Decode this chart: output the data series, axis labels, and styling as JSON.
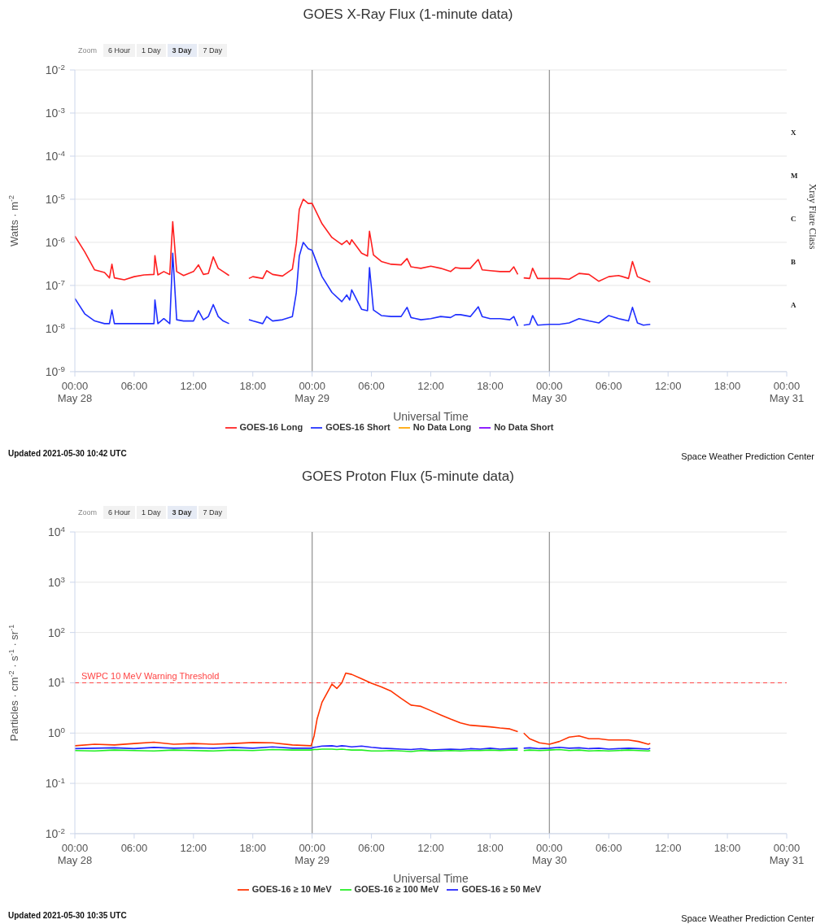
{
  "chart_data": [
    {
      "type": "line",
      "title": "GOES X-Ray Flux (1-minute data)",
      "xlabel": "Universal Time",
      "ylabel": "Watts · m$^{-2}$",
      "y2label": "Xray Flare Class",
      "x": [
        "2021-05-28T00:00",
        "2021-05-28T01:00",
        "2021-05-28T02:00",
        "2021-05-28T03:00",
        "2021-05-28T03:30",
        "2021-05-28T03:45",
        "2021-05-28T04:00",
        "2021-05-28T05:00",
        "2021-05-28T06:00",
        "2021-05-28T07:00",
        "2021-05-28T08:00",
        "2021-05-28T08:06",
        "2021-05-28T08:24",
        "2021-05-28T09:00",
        "2021-05-28T09:36",
        "2021-05-28T09:54",
        "2021-05-28T10:18",
        "2021-05-28T11:00",
        "2021-05-28T12:00",
        "2021-05-28T12:30",
        "2021-05-28T13:00",
        "2021-05-28T13:30",
        "2021-05-28T14:00",
        "2021-05-28T14:30",
        "2021-05-28T15:00",
        "2021-05-28T15:36",
        "2021-05-28T16:36",
        "2021-05-28T17:36",
        "2021-05-28T18:00",
        "2021-05-28T19:00",
        "2021-05-28T19:24",
        "2021-05-28T20:00",
        "2021-05-28T21:00",
        "2021-05-28T22:00",
        "2021-05-28T22:24",
        "2021-05-28T22:42",
        "2021-05-28T23:06",
        "2021-05-28T23:36",
        "2021-05-29T00:00",
        "2021-05-29T01:00",
        "2021-05-29T02:00",
        "2021-05-29T03:00",
        "2021-05-29T03:30",
        "2021-05-29T03:48",
        "2021-05-29T04:00",
        "2021-05-29T05:00",
        "2021-05-29T05:36",
        "2021-05-29T05:48",
        "2021-05-29T06:12",
        "2021-05-29T07:00",
        "2021-05-29T08:00",
        "2021-05-29T09:00",
        "2021-05-29T09:36",
        "2021-05-29T10:00",
        "2021-05-29T11:00",
        "2021-05-29T12:00",
        "2021-05-29T13:00",
        "2021-05-29T14:00",
        "2021-05-29T14:30",
        "2021-05-29T15:00",
        "2021-05-29T16:00",
        "2021-05-29T16:48",
        "2021-05-29T17:12",
        "2021-05-29T18:00",
        "2021-05-29T19:00",
        "2021-05-29T20:00",
        "2021-05-29T20:24",
        "2021-05-29T20:48",
        "2021-05-29T21:06",
        "2021-05-29T21:24",
        "2021-05-29T22:00",
        "2021-05-29T22:18",
        "2021-05-29T22:48",
        "2021-05-30T00:00",
        "2021-05-30T01:00",
        "2021-05-30T02:00",
        "2021-05-30T03:00",
        "2021-05-30T04:00",
        "2021-05-30T05:00",
        "2021-05-30T06:00",
        "2021-05-30T07:00",
        "2021-05-30T08:00",
        "2021-05-30T08:24",
        "2021-05-30T08:54",
        "2021-05-30T09:30",
        "2021-05-30T10:12"
      ],
      "series": [
        {
          "name": "GOES-16 Long",
          "color": "#ff2020",
          "values": [
            1.4e-06,
            6e-07,
            2.3e-07,
            2e-07,
            1.5e-07,
            3.1e-07,
            1.5e-07,
            1.35e-07,
            1.6e-07,
            1.75e-07,
            1.8e-07,
            4.9e-07,
            1.75e-07,
            2.1e-07,
            1.8e-07,
            3e-06,
            2.1e-07,
            1.7e-07,
            2.1e-07,
            3e-07,
            1.8e-07,
            1.9e-07,
            4.6e-07,
            2.5e-07,
            2.1e-07,
            1.7e-07,
            null,
            1.45e-07,
            1.6e-07,
            1.45e-07,
            2.2e-07,
            1.8e-07,
            1.65e-07,
            2.4e-07,
            9.5e-07,
            5.8e-06,
            1e-05,
            8e-06,
            8e-06,
            2.7e-06,
            1.3e-06,
            8.9e-07,
            1.1e-06,
            8.9e-07,
            1.15e-06,
            5.6e-07,
            4.8e-07,
            1.8e-06,
            5.1e-07,
            3.6e-07,
            3.1e-07,
            3e-07,
            4.2e-07,
            2.7e-07,
            2.5e-07,
            2.8e-07,
            2.5e-07,
            2.1e-07,
            2.6e-07,
            2.5e-07,
            2.5e-07,
            4e-07,
            2.3e-07,
            2.2e-07,
            2.1e-07,
            2.1e-07,
            2.7e-07,
            1.8e-07,
            null,
            1.5e-07,
            1.45e-07,
            2.5e-07,
            1.45e-07,
            1.45e-07,
            1.45e-07,
            1.4e-07,
            1.9e-07,
            1.8e-07,
            1.25e-07,
            1.6e-07,
            1.7e-07,
            1.45e-07,
            3.6e-07,
            1.6e-07,
            1.4e-07,
            1.2e-07
          ]
        },
        {
          "name": "GOES-16 Short",
          "color": "#1f2fff",
          "values": [
            5e-08,
            2.2e-08,
            1.5e-08,
            1.3e-08,
            1.3e-08,
            2.7e-08,
            1.3e-08,
            1.3e-08,
            1.3e-08,
            1.3e-08,
            1.3e-08,
            4.6e-08,
            1.3e-08,
            1.7e-08,
            1.3e-08,
            5.6e-07,
            1.6e-08,
            1.5e-08,
            1.5e-08,
            2.6e-08,
            1.6e-08,
            1.9e-08,
            3.6e-08,
            1.9e-08,
            1.5e-08,
            1.3e-08,
            null,
            1.6e-08,
            1.5e-08,
            1.3e-08,
            1.9e-08,
            1.5e-08,
            1.6e-08,
            1.9e-08,
            6.8e-08,
            4.8e-07,
            1e-06,
            7.1e-07,
            6.5e-07,
            1.6e-07,
            6.9e-08,
            4.2e-08,
            6e-08,
            4.6e-08,
            7.9e-08,
            2.8e-08,
            2.6e-08,
            2.6e-07,
            2.7e-08,
            2e-08,
            1.9e-08,
            1.9e-08,
            3.1e-08,
            1.8e-08,
            1.6e-08,
            1.7e-08,
            1.9e-08,
            1.8e-08,
            2.1e-08,
            2.1e-08,
            1.9e-08,
            3.2e-08,
            1.9e-08,
            1.7e-08,
            1.7e-08,
            1.6e-08,
            1.9e-08,
            1.15e-08,
            null,
            1.2e-08,
            1.25e-08,
            2e-08,
            1.2e-08,
            1.25e-08,
            1.25e-08,
            1.35e-08,
            1.7e-08,
            1.5e-08,
            1.35e-08,
            2e-08,
            1.7e-08,
            1.5e-08,
            3.1e-08,
            1.35e-08,
            1.2e-08,
            1.25e-08
          ]
        },
        {
          "name": "No Data Long",
          "color": "#ffa500",
          "values": [
            null,
            null,
            null,
            null,
            null,
            null,
            null,
            null,
            null,
            null,
            null,
            null,
            null,
            null,
            null,
            null,
            null,
            null,
            null,
            null,
            null,
            null,
            null,
            null,
            null,
            null,
            null,
            null,
            null,
            null,
            null,
            null,
            null,
            null,
            null,
            null,
            null,
            null,
            null,
            null,
            null,
            null,
            null,
            null,
            null,
            null,
            null,
            null,
            null,
            null,
            null,
            null,
            null,
            null,
            null,
            null,
            null,
            null,
            null,
            null,
            null,
            null,
            null,
            null,
            null,
            null,
            null,
            null,
            null,
            null,
            null,
            null,
            null,
            null,
            null,
            null,
            null,
            null,
            null,
            null,
            null,
            null,
            null,
            null,
            null,
            null
          ]
        },
        {
          "name": "No Data Short",
          "color": "#7f00ff",
          "values": [
            null,
            null,
            null,
            null,
            null,
            null,
            null,
            null,
            null,
            null,
            null,
            null,
            null,
            null,
            null,
            null,
            null,
            null,
            null,
            null,
            null,
            null,
            null,
            null,
            null,
            null,
            null,
            null,
            null,
            null,
            null,
            null,
            null,
            null,
            null,
            null,
            null,
            null,
            null,
            null,
            null,
            null,
            null,
            null,
            null,
            null,
            null,
            null,
            null,
            null,
            null,
            null,
            null,
            null,
            null,
            null,
            null,
            null,
            null,
            null,
            null,
            null,
            null,
            null,
            null,
            null,
            null,
            null,
            null,
            null,
            null,
            null,
            null,
            null,
            null,
            null,
            null,
            null,
            null,
            null,
            null,
            null,
            null,
            null,
            null,
            null
          ]
        }
      ],
      "log": true,
      "xlim": [
        "2021-05-28T00:00",
        "2021-05-31T00:00"
      ],
      "xticks": [
        {
          "value": "2021-05-28T00:00",
          "label": "00:00 May 28"
        },
        {
          "value": "2021-05-28T06:00",
          "label": "06:00"
        },
        {
          "value": "2021-05-28T12:00",
          "label": "12:00"
        },
        {
          "value": "2021-05-28T18:00",
          "label": "18:00"
        },
        {
          "value": "2021-05-29T00:00",
          "label": "00:00 May 29"
        },
        {
          "value": "2021-05-29T06:00",
          "label": "06:00"
        },
        {
          "value": "2021-05-29T12:00",
          "label": "12:00"
        },
        {
          "value": "2021-05-29T18:00",
          "label": "18:00"
        },
        {
          "value": "2021-05-30T00:00",
          "label": "00:00 May 30"
        },
        {
          "value": "2021-05-30T06:00",
          "label": "06:00"
        },
        {
          "value": "2021-05-30T12:00",
          "label": "12:00"
        },
        {
          "value": "2021-05-30T18:00",
          "label": "18:00"
        },
        {
          "value": "2021-05-31T00:00",
          "label": "00:00 May 31"
        }
      ],
      "ylim": [
        1e-09,
        0.01
      ],
      "yticks": [
        {
          "value": 0.01,
          "label": "10$^{-2}$"
        },
        {
          "value": 0.001,
          "label": "10$^{-3}$"
        },
        {
          "value": 0.0001,
          "label": "10$^{-4}$"
        },
        {
          "value": 1e-05,
          "label": "10$^{-5}$"
        },
        {
          "value": 1e-06,
          "label": "10$^{-6}$"
        },
        {
          "value": 1e-07,
          "label": "10$^{-7}$"
        },
        {
          "value": 1e-08,
          "label": "10$^{-8}$"
        },
        {
          "value": 1e-09,
          "label": "10$^{-9}$"
        }
      ],
      "ref_lines": [
        {
          "axis": "x",
          "value": "2021-05-29T00:00",
          "color": "#999999"
        },
        {
          "axis": "x",
          "value": "2021-05-30T00:00",
          "color": "#999999"
        }
      ],
      "grid": "y",
      "legend": "bottom",
      "marker": "none",
      "annotations": [
        "Zoom",
        "6 Hour",
        "1 Day",
        "3 Day",
        "7 Day",
        "Updated 2021-05-30 10:42 UTC",
        "Space Weather Prediction Center",
        "X",
        "M",
        "C",
        "B",
        "A"
      ]
    },
    {
      "type": "line",
      "title": "GOES Proton Flux (5-minute data)",
      "xlabel": "Universal Time",
      "ylabel": "Particles · cm$^{-2}$ · s$^{-1}$ · sr$^{-1}$",
      "x": [
        "2021-05-28T00:00",
        "2021-05-28T02:00",
        "2021-05-28T04:00",
        "2021-05-28T06:00",
        "2021-05-28T08:00",
        "2021-05-28T10:00",
        "2021-05-28T12:00",
        "2021-05-28T14:00",
        "2021-05-28T16:00",
        "2021-05-28T18:00",
        "2021-05-28T20:00",
        "2021-05-28T22:00",
        "2021-05-28T23:54",
        "2021-05-29T00:12",
        "2021-05-29T00:30",
        "2021-05-29T01:00",
        "2021-05-29T02:00",
        "2021-05-29T02:30",
        "2021-05-29T03:00",
        "2021-05-29T03:24",
        "2021-05-29T04:00",
        "2021-05-29T05:00",
        "2021-05-29T06:00",
        "2021-05-29T07:00",
        "2021-05-29T08:00",
        "2021-05-29T09:00",
        "2021-05-29T10:00",
        "2021-05-29T11:00",
        "2021-05-29T12:00",
        "2021-05-29T13:00",
        "2021-05-29T14:00",
        "2021-05-29T15:00",
        "2021-05-29T16:00",
        "2021-05-29T17:00",
        "2021-05-29T18:00",
        "2021-05-29T19:00",
        "2021-05-29T20:00",
        "2021-05-29T20:48",
        "2021-05-29T21:06",
        "2021-05-29T21:24",
        "2021-05-29T22:00",
        "2021-05-29T23:00",
        "2021-05-30T00:00",
        "2021-05-30T01:00",
        "2021-05-30T02:00",
        "2021-05-30T03:00",
        "2021-05-30T04:00",
        "2021-05-30T05:00",
        "2021-05-30T06:00",
        "2021-05-30T07:00",
        "2021-05-30T08:00",
        "2021-05-30T09:00",
        "2021-05-30T10:00",
        "2021-05-30T10:12"
      ],
      "series": [
        {
          "name": "GOES-16 ≥ 10 MeV",
          "color": "#ff3300",
          "values": [
            0.56,
            0.6,
            0.58,
            0.62,
            0.66,
            0.6,
            0.62,
            0.6,
            0.62,
            0.65,
            0.64,
            0.58,
            0.56,
            0.88,
            1.9,
            4.1,
            9.4,
            7.7,
            10,
            15.6,
            14.7,
            12,
            9.8,
            8.3,
            6.8,
            4.9,
            3.6,
            3.4,
            2.8,
            2.3,
            1.9,
            1.6,
            1.43,
            1.38,
            1.33,
            1.26,
            1.21,
            1.07,
            null,
            1.0,
            0.77,
            0.64,
            0.6,
            0.68,
            0.83,
            0.88,
            0.77,
            0.77,
            0.73,
            0.73,
            0.73,
            0.68,
            0.6,
            0.62
          ]
        },
        {
          "name": "GOES-16 ≥ 50 MeV",
          "color": "#2222ff",
          "values": [
            0.49,
            0.5,
            0.51,
            0.49,
            0.52,
            0.5,
            0.51,
            0.5,
            0.52,
            0.5,
            0.53,
            0.5,
            0.5,
            0.52,
            0.53,
            0.55,
            0.56,
            0.54,
            0.56,
            0.55,
            0.53,
            0.55,
            0.52,
            0.5,
            0.49,
            0.48,
            0.47,
            0.49,
            0.46,
            0.47,
            0.48,
            0.47,
            0.49,
            0.48,
            0.5,
            0.48,
            0.49,
            0.5,
            null,
            0.5,
            0.51,
            0.49,
            0.5,
            0.52,
            0.5,
            0.51,
            0.49,
            0.5,
            0.48,
            0.49,
            0.5,
            0.49,
            0.48,
            0.5
          ]
        },
        {
          "name": "GOES-16 ≥ 100 MeV",
          "color": "#22ee22",
          "values": [
            0.45,
            0.44,
            0.46,
            0.45,
            0.44,
            0.46,
            0.45,
            0.44,
            0.46,
            0.45,
            0.47,
            0.46,
            0.46,
            0.47,
            0.47,
            0.48,
            0.48,
            0.47,
            0.48,
            0.47,
            0.46,
            0.46,
            0.44,
            0.44,
            0.45,
            0.44,
            0.43,
            0.45,
            0.44,
            0.44,
            0.45,
            0.44,
            0.45,
            0.45,
            0.46,
            0.45,
            0.46,
            0.46,
            null,
            0.45,
            0.46,
            0.45,
            0.46,
            0.47,
            0.45,
            0.46,
            0.44,
            0.45,
            0.44,
            0.45,
            0.46,
            0.45,
            0.44,
            0.45
          ]
        }
      ],
      "log": true,
      "xlim": [
        "2021-05-28T00:00",
        "2021-05-31T00:00"
      ],
      "xticks": [
        {
          "value": "2021-05-28T00:00",
          "label": "00:00 May 28"
        },
        {
          "value": "2021-05-28T06:00",
          "label": "06:00"
        },
        {
          "value": "2021-05-28T12:00",
          "label": "12:00"
        },
        {
          "value": "2021-05-28T18:00",
          "label": "18:00"
        },
        {
          "value": "2021-05-29T00:00",
          "label": "00:00 May 29"
        },
        {
          "value": "2021-05-29T06:00",
          "label": "06:00"
        },
        {
          "value": "2021-05-29T12:00",
          "label": "12:00"
        },
        {
          "value": "2021-05-29T18:00",
          "label": "18:00"
        },
        {
          "value": "2021-05-30T00:00",
          "label": "00:00 May 30"
        },
        {
          "value": "2021-05-30T06:00",
          "label": "06:00"
        },
        {
          "value": "2021-05-30T12:00",
          "label": "12:00"
        },
        {
          "value": "2021-05-30T18:00",
          "label": "18:00"
        },
        {
          "value": "2021-05-31T00:00",
          "label": "00:00 May 31"
        }
      ],
      "ylim": [
        0.01,
        10000
      ],
      "yticks": [
        {
          "value": 10000,
          "label": "10$^{4}$"
        },
        {
          "value": 1000,
          "label": "10$^{3}$"
        },
        {
          "value": 100,
          "label": "10$^{2}$"
        },
        {
          "value": 10,
          "label": "10$^{1}$"
        },
        {
          "value": 1,
          "label": "10$^{0}$"
        },
        {
          "value": 0.1,
          "label": "10$^{-1}$"
        },
        {
          "value": 0.01,
          "label": "10$^{-2}$"
        }
      ],
      "ref_lines": [
        {
          "axis": "y",
          "value": 10,
          "label": "SWPC 10 MeV Warning Threshold",
          "color": "#ff4444",
          "line_style": "dashed"
        },
        {
          "axis": "x",
          "value": "2021-05-29T00:00",
          "color": "#999999"
        },
        {
          "axis": "x",
          "value": "2021-05-30T00:00",
          "color": "#999999"
        }
      ],
      "grid": "y",
      "legend": "bottom",
      "marker": "none",
      "annotations": [
        "Zoom",
        "6 Hour",
        "1 Day",
        "3 Day",
        "7 Day",
        "Updated 2021-05-30 10:35 UTC",
        "Space Weather Prediction Center"
      ]
    }
  ]
}
